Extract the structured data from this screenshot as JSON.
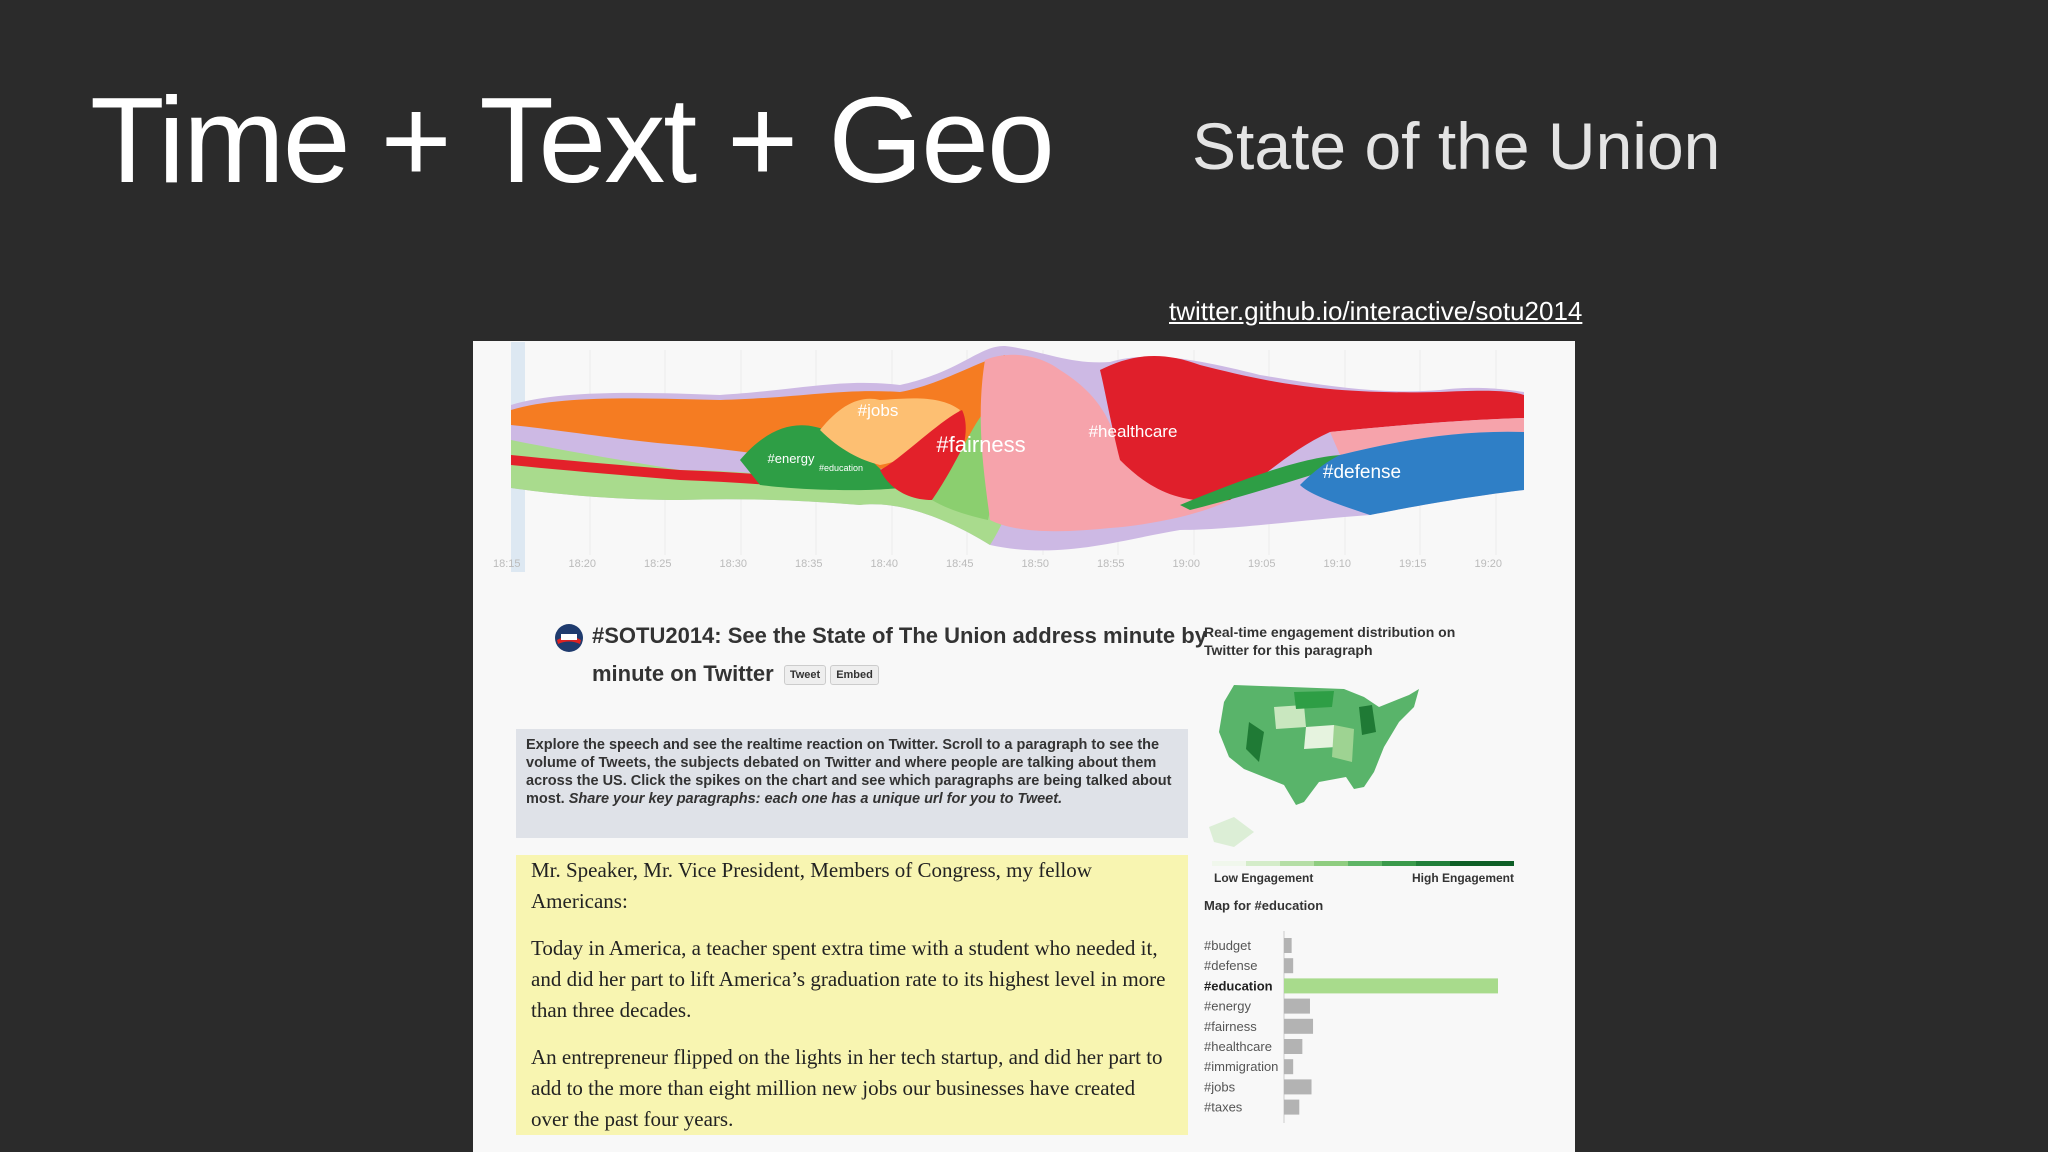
{
  "slide": {
    "title": "Time + Text + Geo",
    "subtitle": "State of the Union",
    "link": "twitter.github.io/interactive/sotu2014"
  },
  "stream": {
    "times": [
      "18:15",
      "18:20",
      "18:25",
      "18:30",
      "18:35",
      "18:40",
      "18:45",
      "18:50",
      "18:55",
      "19:00",
      "19:05",
      "19:10",
      "19:15",
      "19:20"
    ],
    "labels": [
      "#jobs",
      "#energy",
      "#education",
      "#fairness",
      "#healthcare",
      "#defense"
    ]
  },
  "article": {
    "heading": "#SOTU2014: See the State of The Union address minute by minute on Twitter",
    "buttons": [
      "Tweet",
      "Embed"
    ],
    "intro": "Explore the speech and see the realtime reaction on Twitter. Scroll to a paragraph to see the volume of Tweets, the subjects debated on Twitter and where people are talking about them across the US. Click the spikes on the chart and see which paragraphs are being talked about most.",
    "intro_emphasis": "Share your key paragraphs: each one has a unique url for you to Tweet.",
    "paragraphs": [
      "Mr. Speaker, Mr. Vice President, Members of Congress, my fellow Americans:",
      "Today in America, a teacher spent extra time with a student who needed it, and did her part to lift America’s graduation rate to its highest level in more than three decades.",
      "An entrepreneur flipped on the lights in her tech startup, and did her part to add to the more than eight million new jobs our businesses have created over the past four years."
    ]
  },
  "side": {
    "map_title": "Real-time engagement distribution on Twitter for this paragraph",
    "low": "Low Engagement",
    "high": "High Engagement",
    "map_caption": "Map for #education",
    "bars": {
      "categories": [
        "#budget",
        "#defense",
        "#education",
        "#energy",
        "#fairness",
        "#healthcare",
        "#immigration",
        "#jobs",
        "#taxes"
      ],
      "values": [
        1,
        1.2,
        28,
        3.4,
        3.8,
        2.4,
        1.2,
        3.6,
        2
      ],
      "color": "#b3b3b3",
      "selected": "#education",
      "selected_color": "#a8db8c"
    }
  }
}
